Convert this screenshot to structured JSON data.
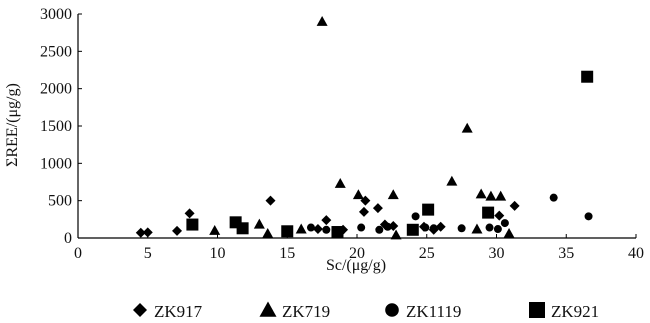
{
  "chart_data": {
    "type": "scatter",
    "xlabel": "Sc/(μg/g)",
    "ylabel": "ΣREE/(μg/g)",
    "xlim": [
      0,
      40
    ],
    "ylim": [
      0,
      3000
    ],
    "x_ticks": [
      "0",
      "5",
      "10",
      "15",
      "20",
      "25",
      "30",
      "35",
      "40"
    ],
    "y_ticks": [
      "0",
      "500",
      "1000",
      "1500",
      "2000",
      "2500",
      "3000"
    ],
    "grid": false,
    "legend_placement": "bottom",
    "colors": {
      "marker": "#000000",
      "axis": "#000000"
    },
    "series": [
      {
        "name": "ZK917",
        "marker": "diamond",
        "points": [
          [
            4.5,
            70
          ],
          [
            5.0,
            75
          ],
          [
            7.1,
            95
          ],
          [
            8.0,
            330
          ],
          [
            13.8,
            500
          ],
          [
            17.2,
            120
          ],
          [
            17.8,
            240
          ],
          [
            19.0,
            110
          ],
          [
            20.5,
            350
          ],
          [
            20.6,
            500
          ],
          [
            21.5,
            400
          ],
          [
            22.0,
            180
          ],
          [
            22.6,
            160
          ],
          [
            24.8,
            150
          ],
          [
            25.5,
            110
          ],
          [
            26.0,
            150
          ],
          [
            30.2,
            300
          ],
          [
            31.3,
            430
          ]
        ]
      },
      {
        "name": "ZK719",
        "marker": "triangle",
        "points": [
          [
            9.8,
            100
          ],
          [
            13.0,
            185
          ],
          [
            13.6,
            60
          ],
          [
            16.0,
            120
          ],
          [
            17.5,
            2900
          ],
          [
            18.8,
            730
          ],
          [
            20.1,
            580
          ],
          [
            22.6,
            580
          ],
          [
            22.8,
            40
          ],
          [
            26.8,
            760
          ],
          [
            27.9,
            1470
          ],
          [
            28.6,
            120
          ],
          [
            28.9,
            590
          ],
          [
            29.6,
            560
          ],
          [
            30.3,
            560
          ],
          [
            30.9,
            60
          ]
        ]
      },
      {
        "name": "ZK1119",
        "marker": "circle",
        "points": [
          [
            16.7,
            140
          ],
          [
            17.8,
            110
          ],
          [
            18.9,
            100
          ],
          [
            20.3,
            140
          ],
          [
            21.6,
            110
          ],
          [
            22.2,
            150
          ],
          [
            24.2,
            290
          ],
          [
            24.9,
            140
          ],
          [
            25.5,
            130
          ],
          [
            27.5,
            130
          ],
          [
            29.5,
            140
          ],
          [
            30.1,
            120
          ],
          [
            30.6,
            200
          ],
          [
            34.1,
            540
          ],
          [
            36.6,
            290
          ]
        ]
      },
      {
        "name": "ZK921",
        "marker": "square",
        "points": [
          [
            8.2,
            180
          ],
          [
            11.3,
            210
          ],
          [
            11.8,
            130
          ],
          [
            15.0,
            90
          ],
          [
            18.6,
            80
          ],
          [
            24.0,
            110
          ],
          [
            25.1,
            380
          ],
          [
            29.4,
            340
          ],
          [
            36.5,
            2160
          ]
        ]
      }
    ]
  }
}
